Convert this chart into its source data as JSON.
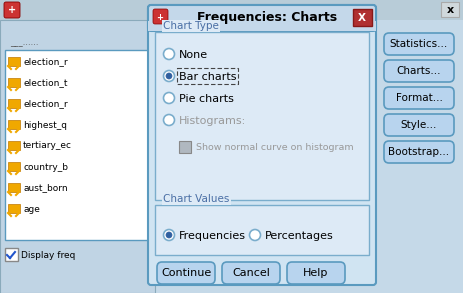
{
  "title": "Frequencies: Charts",
  "bg_outer": "#c5d9e8",
  "bg_left_panel": "#c0d4e4",
  "bg_listbox": "#ffffff",
  "bg_dialog": "#d0e4f2",
  "bg_groupbox": "#ddeaf6",
  "border_color": "#5a9abf",
  "close_btn_color": "#b03030",
  "text_color": "#000000",
  "label_color": "#4a6fa5",
  "disabled_color": "#999999",
  "button_bg": "#b8d4ee",
  "button_border": "#5a9abf",
  "chart_type_label": "Chart Type",
  "chart_values_label": "Chart Values",
  "radio_options": [
    "None",
    "Bar charts",
    "Pie charts",
    "Histograms:"
  ],
  "selected_radio": 1,
  "chart_values_options": [
    "Frequencies",
    "Percentages"
  ],
  "selected_values_radio": 0,
  "show_normal_curve_text": "Show normal curve on histogram",
  "buttons": [
    "Continue",
    "Cancel",
    "Help"
  ],
  "right_buttons": [
    "Statistics...",
    "Charts...",
    "Format...",
    "Style...",
    "Bootstrap..."
  ],
  "list_items": [
    "___...",
    "election_r",
    "election_t",
    "election_r",
    "highest_q",
    "tertiary_ec",
    "country_b",
    "aust_born",
    "age"
  ],
  "display_freq_text": "Display freq",
  "window_close_x": "x",
  "pencil_color": "#f0a800",
  "pencil_edge": "#c07800"
}
